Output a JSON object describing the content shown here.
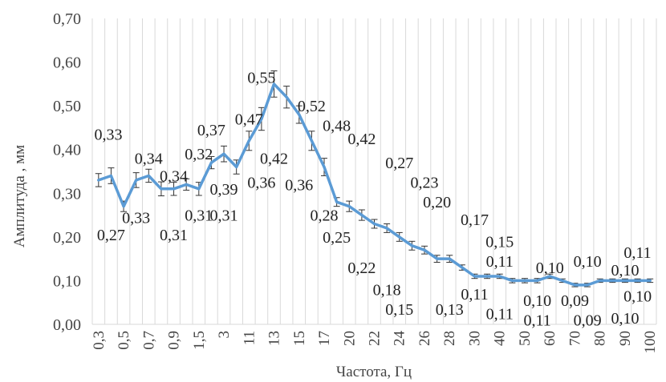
{
  "chart_data": {
    "type": "line",
    "xlabel": "Частота, Гц",
    "ylabel": "Амплитуда , мм",
    "ylim": [
      0,
      0.7
    ],
    "yticks": [
      "0,00",
      "0,10",
      "0,20",
      "0,30",
      "0,40",
      "0,50",
      "0,60",
      "0,70"
    ],
    "grid": "vertical",
    "categories": [
      "0,3",
      "0,4",
      "0,5",
      "0,6",
      "0,7",
      "0,8",
      "0,9",
      "1",
      "1,5",
      "2",
      "3",
      "4",
      "11",
      "12",
      "13",
      "14",
      "15",
      "16",
      "17",
      "18",
      "20",
      "21",
      "22",
      "23",
      "24",
      "25",
      "26",
      "27",
      "28",
      "29",
      "30",
      "35",
      "40",
      "45",
      "50",
      "55",
      "60",
      "65",
      "70",
      "75",
      "80",
      "85",
      "90",
      "95",
      "100"
    ],
    "tick_labels": [
      "0,3",
      "",
      "0,5",
      "",
      "0,7",
      "",
      "0,9",
      "",
      "1,5",
      "",
      "3",
      "",
      "11",
      "",
      "13",
      "",
      "15",
      "",
      "17",
      "",
      "20",
      "",
      "22",
      "",
      "24",
      "",
      "26",
      "",
      "28",
      "",
      "30",
      "",
      "40",
      "",
      "50",
      "",
      "60",
      "",
      "70",
      "",
      "80",
      "",
      "90",
      "",
      "100"
    ],
    "values": [
      0.33,
      0.34,
      0.27,
      0.33,
      0.34,
      0.31,
      0.31,
      0.32,
      0.31,
      0.37,
      0.39,
      0.36,
      0.42,
      0.47,
      0.55,
      0.52,
      0.48,
      0.42,
      0.36,
      0.28,
      0.27,
      0.25,
      0.23,
      0.22,
      0.2,
      0.18,
      0.17,
      0.15,
      0.15,
      0.13,
      0.11,
      0.11,
      0.11,
      0.1,
      0.1,
      0.1,
      0.11,
      0.1,
      0.09,
      0.09,
      0.1,
      0.1,
      0.1,
      0.1,
      0.1
    ],
    "errors": [
      0.015,
      0.018,
      0.012,
      0.017,
      0.015,
      0.016,
      0.015,
      0.013,
      0.015,
      0.014,
      0.018,
      0.016,
      0.022,
      0.026,
      0.03,
      0.025,
      0.02,
      0.022,
      0.02,
      0.01,
      0.012,
      0.012,
      0.01,
      0.01,
      0.01,
      0.01,
      0.009,
      0.008,
      0.008,
      0.006,
      0.005,
      0.005,
      0.005,
      0.005,
      0.005,
      0.005,
      0.005,
      0.004,
      0.004,
      0.004,
      0.004,
      0.004,
      0.004,
      0.004,
      0.004
    ],
    "series_color": "#5b9bd5",
    "data_labels": [
      {
        "text": "0,33",
        "x": "0,3",
        "y": 0.435
      },
      {
        "text": "0,27",
        "x": "0,4",
        "y": 0.205
      },
      {
        "text": "0,34",
        "x": "0,7",
        "y": 0.38
      },
      {
        "text": "0,33",
        "x": "0,6",
        "y": 0.245
      },
      {
        "text": "0,34",
        "x": "0,9",
        "y": 0.34
      },
      {
        "text": "0,31",
        "x": "0,9",
        "y": 0.205
      },
      {
        "text": "0,32",
        "x": "1,5",
        "y": 0.39
      },
      {
        "text": "0,31",
        "x": "1,5",
        "y": 0.25
      },
      {
        "text": "0,37",
        "x": "2",
        "y": 0.445
      },
      {
        "text": "0,39",
        "x": "3",
        "y": 0.31
      },
      {
        "text": "0,31",
        "x": "3",
        "y": 0.25
      },
      {
        "text": "0,47",
        "x": "11",
        "y": 0.47
      },
      {
        "text": "0,36",
        "x": "12",
        "y": 0.325
      },
      {
        "text": "0,55",
        "x": "12",
        "y": 0.565
      },
      {
        "text": "0,42",
        "x": "13",
        "y": 0.38
      },
      {
        "text": "0,52",
        "x": "16",
        "y": 0.5
      },
      {
        "text": "0,36",
        "x": "15",
        "y": 0.32
      },
      {
        "text": "0,48",
        "x": "18",
        "y": 0.455
      },
      {
        "text": "0,28",
        "x": "17",
        "y": 0.25
      },
      {
        "text": "0,42",
        "x": "21",
        "y": 0.425
      },
      {
        "text": "0,25",
        "x": "18",
        "y": 0.2
      },
      {
        "text": "0,27",
        "x": "24",
        "y": 0.37
      },
      {
        "text": "0,22",
        "x": "21",
        "y": 0.13
      },
      {
        "text": "0,23",
        "x": "26",
        "y": 0.325
      },
      {
        "text": "0,20",
        "x": "27",
        "y": 0.28
      },
      {
        "text": "0,18",
        "x": "23",
        "y": 0.08
      },
      {
        "text": "0,15",
        "x": "24",
        "y": 0.035
      },
      {
        "text": "0,13",
        "x": "28",
        "y": 0.035
      },
      {
        "text": "0,17",
        "x": "30",
        "y": 0.24
      },
      {
        "text": "0,15",
        "x": "40",
        "y": 0.19
      },
      {
        "text": "0,11",
        "x": "40",
        "y": 0.145
      },
      {
        "text": "0,11",
        "x": "30",
        "y": 0.07
      },
      {
        "text": "0,11",
        "x": "40",
        "y": 0.025
      },
      {
        "text": "0,10",
        "x": "55",
        "y": 0.055
      },
      {
        "text": "0,10",
        "x": "60",
        "y": 0.13
      },
      {
        "text": "0,11",
        "x": "55",
        "y": 0.01
      },
      {
        "text": "0,09",
        "x": "70",
        "y": 0.055
      },
      {
        "text": "0,10",
        "x": "75",
        "y": 0.145
      },
      {
        "text": "0,09",
        "x": "75",
        "y": 0.01
      },
      {
        "text": "0,10",
        "x": "90",
        "y": 0.125
      },
      {
        "text": "0,10",
        "x": "90",
        "y": 0.015
      },
      {
        "text": "0,11",
        "x": "95",
        "y": 0.165
      },
      {
        "text": "0,10",
        "x": "95",
        "y": 0.065
      }
    ]
  }
}
